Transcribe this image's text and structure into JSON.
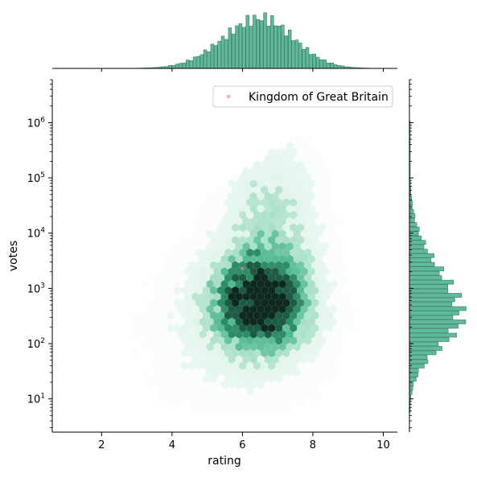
{
  "chart_data": {
    "type": "hexbin",
    "title": "",
    "xlabel": "rating",
    "ylabel": "votes",
    "xlim": [
      0.6,
      10.4
    ],
    "ylim": [
      2.5,
      6000000
    ],
    "yscale": "log",
    "x_ticks": [
      2,
      4,
      6,
      8,
      10
    ],
    "y_ticks": [
      {
        "value": 10,
        "label": "10^1"
      },
      {
        "value": 100,
        "label": "10^2"
      },
      {
        "value": 1000,
        "label": "10^3"
      },
      {
        "value": 10000,
        "label": "10^4"
      },
      {
        "value": 100000,
        "label": "10^5"
      },
      {
        "value": 1000000,
        "label": "10^6"
      }
    ],
    "colormap": [
      "#f3fbf7",
      "#cfeee0",
      "#8dd6b5",
      "#4cb88c",
      "#2e8d68",
      "#1d5b45",
      "#0e2a20"
    ],
    "grid": false,
    "legend": {
      "position": "top-right",
      "entries": [
        {
          "label": "Kingdom of Great Britain",
          "color": "#f08080",
          "marker": "x"
        }
      ]
    },
    "highlight_point": {
      "x": 6.0,
      "y": 2300
    },
    "density_core": {
      "x_mean": 6.5,
      "x_sd": 0.85,
      "log10_votes_mean": 2.75,
      "log10_votes_sd": 0.55
    },
    "marginal_x": {
      "type": "histogram",
      "color": "#5fba9b",
      "bin_width": 0.1,
      "range": [
        2.0,
        9.8
      ],
      "peak_at": 6.5
    },
    "marginal_y": {
      "type": "histogram",
      "color": "#5fba9b",
      "log10_range": [
        0.75,
        6.0
      ],
      "peak_at_votes": 300
    }
  }
}
